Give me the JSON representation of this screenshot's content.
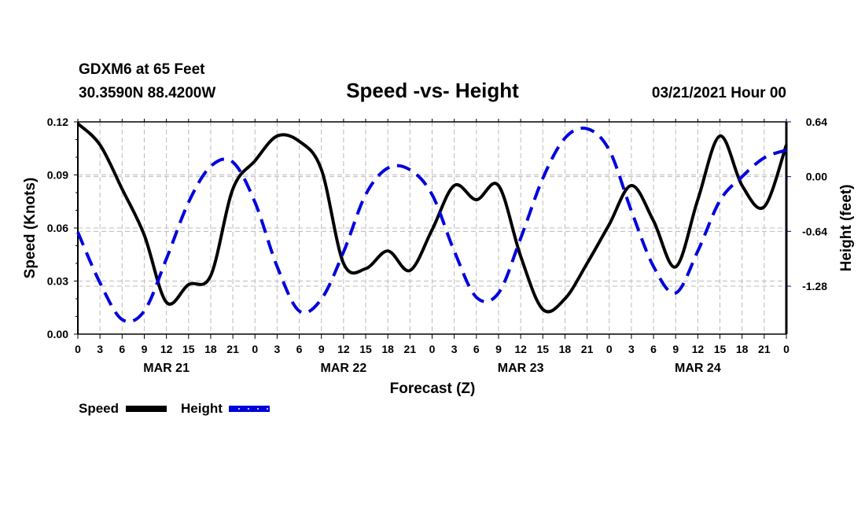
{
  "chart_data": {
    "type": "line",
    "station_line": "GDXM6 at 65 Feet",
    "coords_line": "30.3590N 88.4200W",
    "title": "Speed -vs- Height",
    "run_label": "03/21/2021 Hour 00",
    "xlabel": "Forecast (Z)",
    "ylabel_left": "Speed (Knots)",
    "ylabel_right": "Height (feet)",
    "xlim": [
      0,
      96
    ],
    "ylim_left": [
      0.0,
      0.12
    ],
    "ylim_right": [
      -1.84,
      0.64
    ],
    "left_ticks": [
      "0.00",
      "0.03",
      "0.06",
      "0.09",
      "0.12"
    ],
    "left_tick_values": [
      0.0,
      0.03,
      0.06,
      0.09,
      0.12
    ],
    "right_ticks": [
      "-1.28",
      "-0.64",
      "0.00",
      "0.64"
    ],
    "right_tick_values": [
      -1.28,
      -0.64,
      0.0,
      0.64
    ],
    "x_tick_labels": [
      "0",
      "3",
      "6",
      "9",
      "12",
      "15",
      "18",
      "21",
      "0",
      "3",
      "6",
      "9",
      "12",
      "15",
      "18",
      "21",
      "0",
      "3",
      "6",
      "9",
      "12",
      "15",
      "18",
      "21",
      "0",
      "3",
      "6",
      "9",
      "12",
      "15",
      "18",
      "21",
      "0"
    ],
    "day_labels": [
      {
        "label": "MAR 21",
        "hour": 12
      },
      {
        "label": "MAR 22",
        "hour": 36
      },
      {
        "label": "MAR 23",
        "hour": 60
      },
      {
        "label": "MAR 24",
        "hour": 84
      }
    ],
    "grid": true,
    "legend_placement": "bottom-left",
    "x": [
      0,
      3,
      6,
      9,
      12,
      15,
      18,
      21,
      24,
      27,
      30,
      33,
      36,
      39,
      42,
      45,
      48,
      51,
      54,
      57,
      60,
      63,
      66,
      69,
      72,
      75,
      78,
      81,
      84,
      87,
      90,
      93,
      96
    ],
    "series": [
      {
        "name": "Speed",
        "axis": "left",
        "color": "#000000",
        "style": "solid",
        "values": [
          0.119,
          0.107,
          0.082,
          0.056,
          0.018,
          0.028,
          0.033,
          0.082,
          0.098,
          0.112,
          0.109,
          0.093,
          0.04,
          0.037,
          0.047,
          0.036,
          0.059,
          0.084,
          0.076,
          0.084,
          0.044,
          0.014,
          0.02,
          0.04,
          0.062,
          0.084,
          0.064,
          0.038,
          0.076,
          0.112,
          0.084,
          0.072,
          0.107
        ]
      },
      {
        "name": "Height",
        "axis": "right",
        "color": "#0000dd",
        "style": "dashed",
        "values": [
          -0.65,
          -1.24,
          -1.67,
          -1.57,
          -0.96,
          -0.3,
          0.12,
          0.17,
          -0.3,
          -1.05,
          -1.57,
          -1.43,
          -0.88,
          -0.21,
          0.1,
          0.08,
          -0.21,
          -0.87,
          -1.41,
          -1.36,
          -0.72,
          -0.02,
          0.45,
          0.56,
          0.31,
          -0.4,
          -1.05,
          -1.36,
          -0.87,
          -0.28,
          0.0,
          0.22,
          0.31
        ]
      }
    ]
  }
}
